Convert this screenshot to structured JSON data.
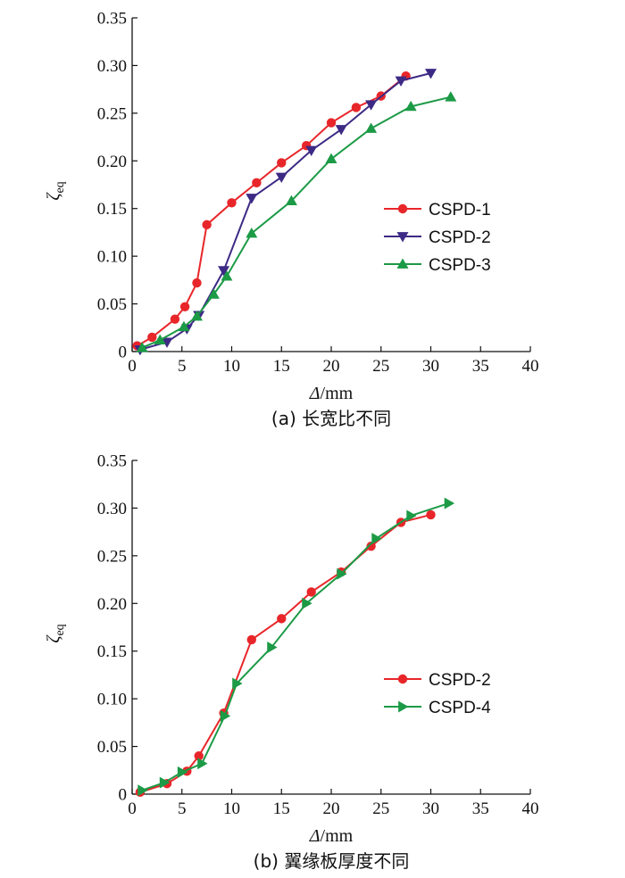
{
  "chart_data": [
    {
      "type": "line",
      "caption": "(a) 长宽比不同",
      "xlabel_symbol": "Δ",
      "xlabel_unit": "/mm",
      "ylabel_symbol": "ζ",
      "ylabel_sub": "eq",
      "xlim": [
        0,
        40
      ],
      "ylim": [
        0,
        0.35
      ],
      "xticks": [
        "0",
        "5",
        "10",
        "15",
        "20",
        "25",
        "30",
        "35",
        "40"
      ],
      "yticks": [
        "0",
        "0.05",
        "0.10",
        "0.15",
        "0.20",
        "0.25",
        "0.30",
        "0.35"
      ],
      "grid": false,
      "legend_position": "lower-right",
      "series": [
        {
          "name": "CSPD-1",
          "color": "#e8262a",
          "marker": "circle",
          "x": [
            0.5,
            2.0,
            4.3,
            5.3,
            6.5,
            7.5,
            10.0,
            12.5,
            15.0,
            17.5,
            20.0,
            22.5,
            25.0,
            27.5
          ],
          "y": [
            0.006,
            0.015,
            0.034,
            0.047,
            0.072,
            0.133,
            0.156,
            0.177,
            0.198,
            0.216,
            0.24,
            0.256,
            0.268,
            0.289
          ]
        },
        {
          "name": "CSPD-2",
          "color": "#3d2a85",
          "marker": "triangle-down",
          "x": [
            0.8,
            3.5,
            5.5,
            6.7,
            9.2,
            12.0,
            15.0,
            18.0,
            21.0,
            24.0,
            27.0,
            30.0
          ],
          "y": [
            0.002,
            0.01,
            0.024,
            0.038,
            0.085,
            0.161,
            0.183,
            0.211,
            0.233,
            0.259,
            0.284,
            0.292
          ]
        },
        {
          "name": "CSPD-3",
          "color": "#1c9a46",
          "marker": "triangle-up",
          "x": [
            1.0,
            2.8,
            5.2,
            6.5,
            8.2,
            9.5,
            12.0,
            16.0,
            20.0,
            24.0,
            28.0,
            32.0
          ],
          "y": [
            0.004,
            0.012,
            0.026,
            0.037,
            0.06,
            0.079,
            0.124,
            0.158,
            0.202,
            0.234,
            0.257,
            0.267
          ]
        }
      ]
    },
    {
      "type": "line",
      "caption": "(b) 翼缘板厚度不同",
      "xlabel_symbol": "Δ",
      "xlabel_unit": "/mm",
      "ylabel_symbol": "ζ",
      "ylabel_sub": "eq",
      "xlim": [
        0,
        40
      ],
      "ylim": [
        0,
        0.35
      ],
      "xticks": [
        "0",
        "5",
        "10",
        "15",
        "20",
        "25",
        "30",
        "35",
        "40"
      ],
      "yticks": [
        "0",
        "0.05",
        "0.10",
        "0.15",
        "0.20",
        "0.25",
        "0.30",
        "0.35"
      ],
      "grid": false,
      "legend_position": "lower-right",
      "series": [
        {
          "name": "CSPD-2",
          "color": "#e8262a",
          "marker": "circle",
          "x": [
            0.8,
            3.5,
            5.5,
            6.7,
            9.2,
            12.0,
            15.0,
            18.0,
            21.0,
            24.0,
            27.0,
            30.0
          ],
          "y": [
            0.002,
            0.011,
            0.024,
            0.04,
            0.085,
            0.162,
            0.184,
            0.212,
            0.233,
            0.26,
            0.285,
            0.293
          ]
        },
        {
          "name": "CSPD-4",
          "color": "#1c9a46",
          "marker": "triangle-right",
          "x": [
            1.0,
            3.2,
            5.0,
            7.0,
            9.3,
            10.5,
            14.0,
            17.5,
            21.0,
            24.5,
            28.0,
            31.8
          ],
          "y": [
            0.004,
            0.012,
            0.023,
            0.032,
            0.082,
            0.116,
            0.154,
            0.2,
            0.231,
            0.268,
            0.292,
            0.305
          ]
        }
      ]
    }
  ]
}
